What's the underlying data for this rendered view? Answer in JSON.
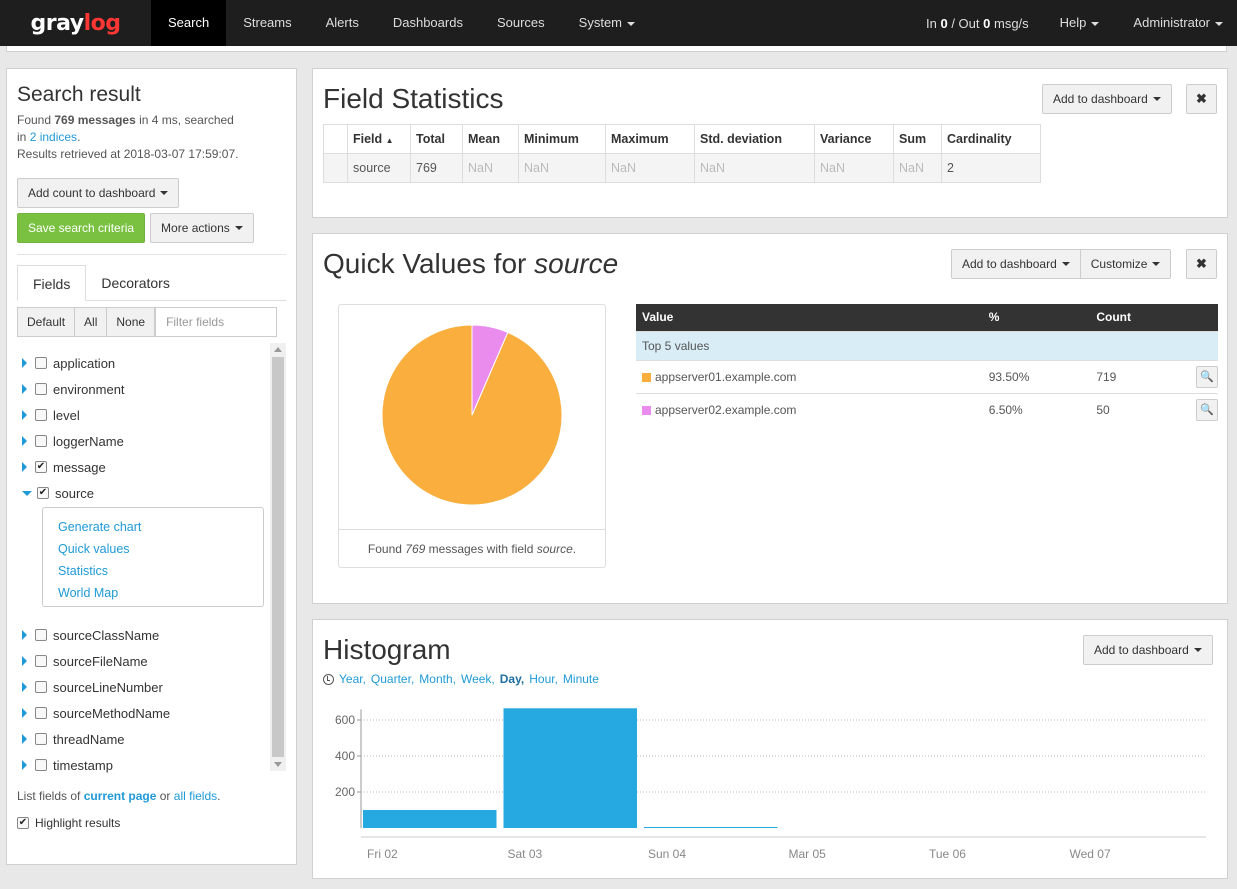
{
  "nav": {
    "logo_a": "gray",
    "logo_b": "log",
    "items": [
      "Search",
      "Streams",
      "Alerts",
      "Dashboards",
      "Sources",
      "System"
    ],
    "throughput_in_label": "In",
    "throughput_in": "0",
    "throughput_sep": "/ Out",
    "throughput_out": "0",
    "throughput_unit": "msg/s",
    "help": "Help",
    "user": "Administrator"
  },
  "search": {
    "title": "Search result",
    "found_prefix": "Found",
    "found_count": "769 messages",
    "found_suffix": "in 4 ms, searched",
    "in_word": "in",
    "indices_link": "2 indices",
    "indices_dot": ".",
    "retrieved": "Results retrieved at 2018-03-07 17:59:07.",
    "add_count_label": "Add count to dashboard",
    "save_label": "Save search criteria",
    "more_label": "More actions"
  },
  "fields_panel": {
    "tabs": [
      "Fields",
      "Decorators"
    ],
    "filter_buttons": [
      "Default",
      "All",
      "None"
    ],
    "filter_placeholder": "Filter fields",
    "fields": [
      {
        "name": "application",
        "checked": false,
        "expanded": false
      },
      {
        "name": "environment",
        "checked": false,
        "expanded": false
      },
      {
        "name": "level",
        "checked": false,
        "expanded": false
      },
      {
        "name": "loggerName",
        "checked": false,
        "expanded": false
      },
      {
        "name": "message",
        "checked": true,
        "expanded": false
      },
      {
        "name": "source",
        "checked": true,
        "expanded": true
      },
      {
        "name": "sourceClassName",
        "checked": false,
        "expanded": false
      },
      {
        "name": "sourceFileName",
        "checked": false,
        "expanded": false
      },
      {
        "name": "sourceLineNumber",
        "checked": false,
        "expanded": false
      },
      {
        "name": "sourceMethodName",
        "checked": false,
        "expanded": false
      },
      {
        "name": "threadName",
        "checked": false,
        "expanded": false
      },
      {
        "name": "timestamp",
        "checked": false,
        "expanded": false
      }
    ],
    "source_actions": [
      "Generate chart",
      "Quick values",
      "Statistics",
      "World Map"
    ],
    "list_prefix": "List fields of",
    "list_current": "current page",
    "list_or": "or",
    "list_all": "all fields",
    "list_dot": ".",
    "highlight_label": "Highlight results",
    "highlight_checked": true
  },
  "field_stats": {
    "title": "Field Statistics",
    "add_label": "Add to dashboard",
    "close": "✖",
    "sort_icon": "▲",
    "columns": [
      "Field",
      "Total",
      "Mean",
      "Minimum",
      "Maximum",
      "Std. deviation",
      "Variance",
      "Sum",
      "Cardinality"
    ],
    "row": [
      "source",
      "769",
      "NaN",
      "NaN",
      "NaN",
      "NaN",
      "NaN",
      "NaN",
      "2"
    ]
  },
  "quick_values": {
    "title_prefix": "Quick Values for",
    "title_field": "source",
    "add_label": "Add to dashboard",
    "customize_label": "Customize",
    "close": "✖",
    "caption_a": "Found",
    "caption_count": "769",
    "caption_b": "messages with field",
    "caption_field": "source",
    "caption_dot": ".",
    "columns": [
      "Value",
      "%",
      "Count"
    ],
    "top_label": "Top 5 values",
    "rows": [
      {
        "value": "appserver01.example.com",
        "percent": "93.50%",
        "count": "719",
        "color": "#f9ae3d"
      },
      {
        "value": "appserver02.example.com",
        "percent": "6.50%",
        "count": "50",
        "color": "#ea8ced"
      }
    ]
  },
  "histogram": {
    "title": "Histogram",
    "add_label": "Add to dashboard",
    "resolutions": [
      "Year,",
      "Quarter,",
      "Month,",
      "Week,",
      "Day,",
      "Hour,",
      "Minute"
    ],
    "selected": "Day,"
  },
  "chart_data": [
    {
      "type": "pie",
      "categories": [
        "appserver01.example.com",
        "appserver02.example.com"
      ],
      "values": [
        719,
        50
      ],
      "colors": [
        "#f9ae3d",
        "#ea8ced"
      ]
    },
    {
      "type": "bar",
      "categories": [
        "Fri 02",
        "Sat 03",
        "Sun 04",
        "Mar 05",
        "Tue 06",
        "Wed 07"
      ],
      "values": [
        100,
        665,
        4,
        0,
        0,
        0
      ],
      "yticks": [
        200,
        400,
        600
      ],
      "ylim": [
        0,
        700
      ],
      "grid": true,
      "color": "#26a8e0"
    }
  ]
}
